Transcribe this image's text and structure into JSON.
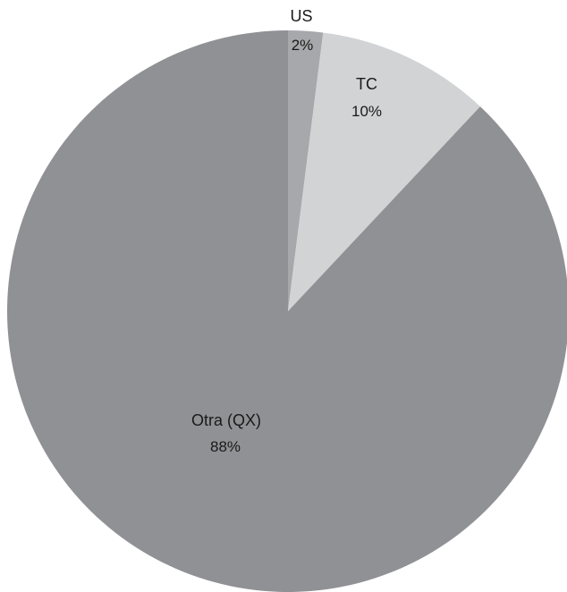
{
  "chart_data": {
    "type": "pie",
    "title": "",
    "start_angle_deg": 0,
    "direction": "clockwise",
    "slices": [
      {
        "label": "US",
        "value": 2,
        "value_label": "2%",
        "color": "#a7a8ab"
      },
      {
        "label": "TC",
        "value": 10,
        "value_label": "10%",
        "color": "#d2d3d5"
      },
      {
        "label": "Otra (QX)",
        "value": 88,
        "value_label": "88%",
        "color": "#909194"
      }
    ]
  }
}
